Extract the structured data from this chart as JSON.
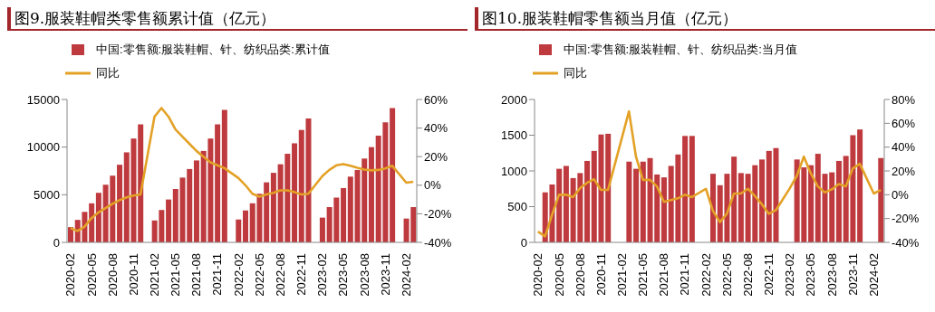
{
  "chart_data": [
    {
      "type": "bar",
      "title": "图9.服装鞋帽类零售额累计值（亿元）",
      "categories": [
        "2020-02",
        null,
        null,
        "2020-05",
        null,
        null,
        "2020-08",
        null,
        null,
        "2020-11",
        null,
        null,
        "2021-02",
        null,
        null,
        "2021-05",
        null,
        null,
        "2021-08",
        null,
        null,
        "2021-11",
        null,
        null,
        "2022-02",
        null,
        null,
        "2022-05",
        null,
        null,
        "2022-08",
        null,
        null,
        "2022-11",
        null,
        null,
        "2023-02",
        null,
        null,
        "2023-05",
        null,
        null,
        "2023-08",
        null,
        null,
        "2023-11",
        null,
        null,
        "2024-02",
        null
      ],
      "series": [
        {
          "name": "中国:零售额:服装鞋帽、针、纺织品类:累计值",
          "color": "#be3a3e",
          "values": [
            1600,
            2360,
            3200,
            4100,
            5200,
            6050,
            7000,
            8150,
            9450,
            10900,
            12400,
            null,
            2300,
            3400,
            4500,
            5600,
            6800,
            7700,
            8600,
            9600,
            10900,
            12400,
            13900,
            null,
            2400,
            3350,
            4100,
            5100,
            6300,
            7300,
            8200,
            9300,
            10400,
            11800,
            13000,
            null,
            2600,
            3700,
            4700,
            5700,
            6900,
            7600,
            8800,
            10000,
            11200,
            12600,
            14100,
            null,
            2500,
            3700
          ]
        },
        {
          "name": "同比",
          "type": "line",
          "axis": "y2",
          "color": "#e3a126",
          "values": [
            -30,
            -32,
            -29,
            -23,
            -19,
            -16,
            -13,
            -10.5,
            -8.5,
            -7.3,
            -6.5,
            null,
            48,
            54,
            48,
            39,
            34,
            29,
            24,
            20,
            16,
            14,
            12,
            null,
            5,
            0,
            -6,
            -8,
            -6.5,
            -5.4,
            -3.6,
            -3.6,
            -4.8,
            -6.5,
            -6,
            null,
            6.4,
            10.7,
            13.9,
            14.8,
            13.6,
            12.2,
            11,
            10.4,
            10.7,
            11.8,
            13.6,
            null,
            1.8,
            2.4
          ]
        }
      ],
      "ylim": [
        0,
        15000
      ],
      "yticks": [
        0,
        5000,
        10000,
        15000
      ],
      "y2lim": [
        -40,
        60
      ],
      "y2ticks": [
        {
          "value": -40,
          "label": "-40%"
        },
        {
          "value": -20,
          "label": "-20%"
        },
        {
          "value": 0,
          "label": "0%"
        },
        {
          "value": 20,
          "label": "20%"
        },
        {
          "value": 40,
          "label": "40%"
        },
        {
          "value": 60,
          "label": "60%"
        }
      ],
      "legend": "top left",
      "grid": false,
      "marker": "none"
    },
    {
      "type": "bar",
      "title": "图10.服装鞋帽零售额当月值（亿元）",
      "categories": [
        "2020-02",
        null,
        null,
        "2020-05",
        null,
        null,
        "2020-08",
        null,
        null,
        "2020-11",
        null,
        null,
        "2021-02",
        null,
        null,
        "2021-05",
        null,
        null,
        "2021-08",
        null,
        null,
        "2021-11",
        null,
        null,
        "2022-02",
        null,
        null,
        "2022-05",
        null,
        null,
        "2022-08",
        null,
        null,
        "2022-11",
        null,
        null,
        "2023-02",
        null,
        null,
        "2023-05",
        null,
        null,
        "2023-08",
        null,
        null,
        "2023-11",
        null,
        null,
        "2024-02",
        null
      ],
      "series": [
        {
          "name": "中国:零售额:服装鞋帽、针、纺织品类:当月值",
          "color": "#be3a3e",
          "values": [
            null,
            700,
            810,
            1030,
            1070,
            900,
            970,
            1140,
            1280,
            1510,
            1520,
            null,
            null,
            1130,
            1030,
            1130,
            1180,
            950,
            910,
            1070,
            1230,
            1490,
            1490,
            null,
            null,
            960,
            800,
            960,
            1200,
            970,
            960,
            1080,
            1160,
            1280,
            1320,
            null,
            null,
            1160,
            1050,
            1080,
            1240,
            960,
            980,
            1140,
            1210,
            1500,
            1580,
            null,
            null,
            1180
          ]
        },
        {
          "name": "同比",
          "type": "line",
          "axis": "y2",
          "color": "#e3a126",
          "values": [
            -31,
            -35,
            -17,
            0,
            0,
            -2,
            5.5,
            10,
            13,
            4,
            4,
            null,
            null,
            70,
            32,
            12.5,
            12.5,
            7,
            -6,
            -4.5,
            -3,
            0,
            -2,
            null,
            5,
            -13.5,
            -23,
            -16,
            1,
            1,
            5,
            -1,
            -8,
            -16,
            -13,
            null,
            5.5,
            16,
            32,
            18,
            7,
            2,
            4.5,
            9,
            7,
            22,
            26,
            null,
            1,
            4
          ]
        }
      ],
      "ylim": [
        0,
        2000
      ],
      "yticks": [
        0,
        500,
        1000,
        1500,
        2000
      ],
      "y2lim": [
        -40,
        80
      ],
      "y2ticks": [
        {
          "value": -40,
          "label": "-40%"
        },
        {
          "value": -20,
          "label": "-20%"
        },
        {
          "value": 0,
          "label": "0%"
        },
        {
          "value": 20,
          "label": "20%"
        },
        {
          "value": 40,
          "label": "40%"
        },
        {
          "value": 60,
          "label": "60%"
        },
        {
          "value": 80,
          "label": "80%"
        }
      ],
      "legend": "top left",
      "grid": false,
      "marker": "none"
    }
  ]
}
